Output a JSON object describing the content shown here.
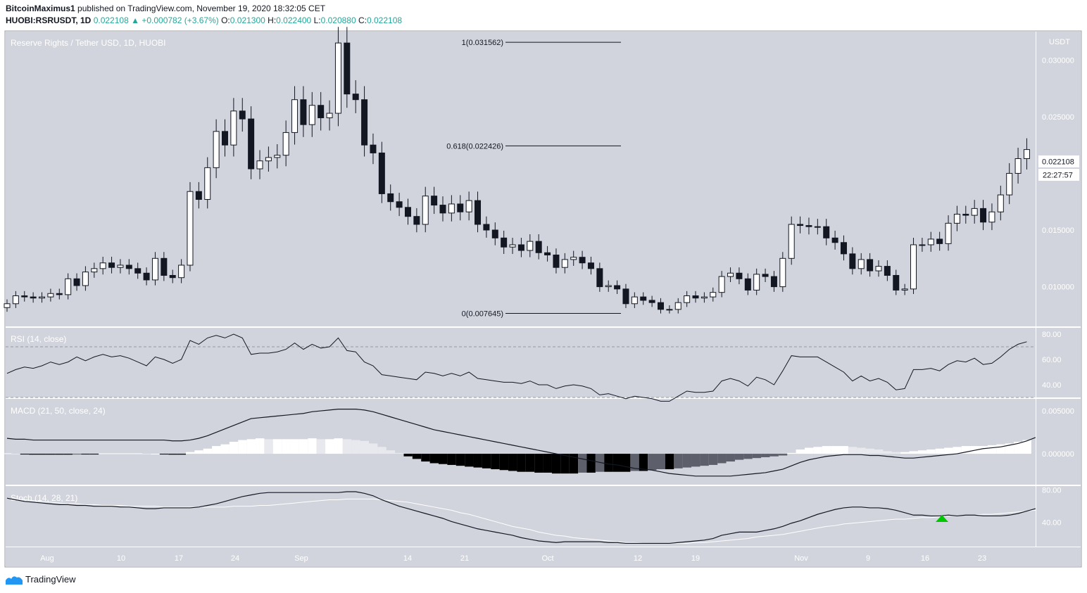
{
  "header": {
    "publisher": "BitcoinMaximus1",
    "published_text": "published on TradingView.com, November 19, 2020 18:32:05 CET",
    "symbol": "HUOBI:RSRUSDT, 1D",
    "price": "0.022108",
    "change": "+0.000782 (+3.67%)",
    "o_label": "O:",
    "o_value": "0.021300",
    "h_label": "H:",
    "h_value": "0.022400",
    "l_label": "L:",
    "l_value": "0.020880",
    "c_label": "C:",
    "c_value": "0.022108"
  },
  "footer": {
    "brand": "TradingView"
  },
  "colors": {
    "panel_bg": "#d1d4dc",
    "line": "#131722",
    "up_candle": "#ffffff",
    "down_candle": "#131722",
    "signal_arrow": "#00c800"
  },
  "chart_data": [
    {
      "type": "candlestick",
      "title": "Reserve Rights / Tether USD, 1D, HUOBI",
      "currency": "USDT",
      "y_ticks": [
        "0.030000",
        "0.025000",
        "0.015000",
        "0.010000"
      ],
      "ylim": [
        0.0065,
        0.0325
      ],
      "x_ticks": [
        "Aug",
        "10",
        "17",
        "24",
        "Sep",
        "14",
        "21",
        "Oct",
        "12",
        "19",
        "Nov",
        "9",
        "16",
        "23"
      ],
      "last_price": "0.022108",
      "countdown": "22:27:57",
      "fib_levels": [
        {
          "label": "1(0.031562)",
          "value": 0.031562
        },
        {
          "label": "0.618(0.022426)",
          "value": 0.022426
        },
        {
          "label": "0(0.007645)",
          "value": 0.007645
        }
      ],
      "close": [
        0.0085,
        0.0092,
        0.0091,
        0.009,
        0.0091,
        0.0094,
        0.0093,
        0.0107,
        0.0101,
        0.0113,
        0.0116,
        0.0121,
        0.0117,
        0.0119,
        0.0116,
        0.0112,
        0.0106,
        0.0125,
        0.011,
        0.0108,
        0.0119,
        0.0184,
        0.0177,
        0.0205,
        0.0237,
        0.0225,
        0.0255,
        0.0248,
        0.0204,
        0.0211,
        0.0214,
        0.0216,
        0.0236,
        0.0265,
        0.0243,
        0.026,
        0.0249,
        0.0253,
        0.0315,
        0.027,
        0.0265,
        0.0225,
        0.0218,
        0.0182,
        0.0175,
        0.017,
        0.0162,
        0.0155,
        0.018,
        0.0172,
        0.0165,
        0.0173,
        0.0166,
        0.0176,
        0.0155,
        0.015,
        0.0143,
        0.0135,
        0.0137,
        0.0132,
        0.014,
        0.013,
        0.0128,
        0.0117,
        0.0124,
        0.0126,
        0.0121,
        0.0116,
        0.01,
        0.0101,
        0.0098,
        0.0085,
        0.0091,
        0.0088,
        0.0086,
        0.008,
        0.008,
        0.0086,
        0.0092,
        0.009,
        0.0091,
        0.0095,
        0.0109,
        0.0112,
        0.0107,
        0.0097,
        0.0111,
        0.0109,
        0.01,
        0.0125,
        0.0155,
        0.0154,
        0.0153,
        0.0153,
        0.0143,
        0.0139,
        0.0129,
        0.0116,
        0.0124,
        0.0114,
        0.0118,
        0.011,
        0.0097,
        0.0098,
        0.0137,
        0.0137,
        0.0142,
        0.0138,
        0.0156,
        0.0164,
        0.0163,
        0.0169,
        0.0157,
        0.0166,
        0.0181,
        0.02,
        0.0213,
        0.0221
      ],
      "rsi": {
        "label": "RSI (14, close)",
        "y_ticks": [
          "80.00",
          "60.00",
          "40.00"
        ],
        "ylim": [
          30,
          85
        ],
        "bands": [
          70,
          30
        ],
        "values": [
          49,
          52,
          54,
          53,
          55,
          58,
          56,
          58,
          62,
          59,
          62,
          64,
          62,
          63,
          61,
          58,
          55,
          62,
          60,
          57,
          60,
          75,
          72,
          77,
          79,
          77,
          80,
          77,
          64,
          65,
          65,
          66,
          68,
          73,
          68,
          72,
          69,
          70,
          77,
          67,
          66,
          58,
          55,
          48,
          47,
          46,
          45,
          44,
          50,
          49,
          47,
          49,
          47,
          50,
          45,
          44,
          43,
          42,
          42,
          41,
          43,
          40,
          40,
          37,
          39,
          40,
          39,
          37,
          32,
          33,
          31,
          29,
          31,
          30,
          29,
          27,
          27,
          31,
          35,
          34,
          34,
          35,
          43,
          45,
          43,
          39,
          46,
          44,
          40,
          51,
          63,
          62,
          62,
          62,
          58,
          54,
          50,
          43,
          47,
          43,
          45,
          42,
          36,
          37,
          52,
          52,
          53,
          51,
          56,
          59,
          58,
          61,
          56,
          57,
          62,
          68,
          72,
          74
        ]
      },
      "macd": {
        "label": "MACD (21, 50, close, 24)",
        "y_ticks": [
          "0.005000",
          "0.000000"
        ],
        "ylim": [
          -0.0036,
          0.0064
        ],
        "histogram": [
          5e-05,
          0.0,
          -5e-05,
          -0.0001,
          -0.0001,
          -0.0001,
          -0.0001,
          -0.0001,
          -5e-05,
          -5e-05,
          -5e-05,
          5e-05,
          5e-05,
          5e-05,
          5e-05,
          5e-05,
          0.0,
          0.0,
          -5e-05,
          -0.0001,
          -0.0001,
          0.0002,
          0.0004,
          0.0006,
          0.0009,
          0.0011,
          0.0014,
          0.0016,
          0.0017,
          0.0018,
          0.0017,
          0.0017,
          0.0017,
          0.0017,
          0.0017,
          0.0018,
          0.0017,
          0.0017,
          0.0018,
          0.0017,
          0.0016,
          0.0015,
          0.0012,
          0.0008,
          0.0004,
          0.0001,
          -0.0003,
          -0.0006,
          -0.0009,
          -0.0011,
          -0.0012,
          -0.0013,
          -0.0014,
          -0.0015,
          -0.0016,
          -0.0017,
          -0.0018,
          -0.0019,
          -0.002,
          -0.0021,
          -0.0021,
          -0.0022,
          -0.0022,
          -0.0023,
          -0.0023,
          -0.0023,
          -0.0022,
          -0.0022,
          -0.0021,
          -0.0021,
          -0.0021,
          -0.0021,
          -0.002,
          -0.002,
          -0.0019,
          -0.0018,
          -0.0018,
          -0.0017,
          -0.0016,
          -0.0015,
          -0.0014,
          -0.0013,
          -0.0011,
          -0.0009,
          -0.0007,
          -0.0006,
          -0.0005,
          -0.0004,
          -0.0003,
          -0.0002,
          0.0001,
          0.0005,
          0.0007,
          0.0008,
          0.0009,
          0.0009,
          0.0009,
          0.0008,
          0.0007,
          0.0006,
          0.0005,
          0.0003,
          0.0002,
          0.0002,
          0.0003,
          0.0004,
          0.0005,
          0.0006,
          0.0007,
          0.0008,
          0.0009,
          0.0009,
          0.0009,
          0.001,
          0.0011,
          0.0012,
          0.0014,
          0.0016
        ],
        "macd_line": [
          0.0018,
          0.0017,
          0.0017,
          0.0016,
          0.0016,
          0.0016,
          0.0016,
          0.0016,
          0.0016,
          0.0016,
          0.0016,
          0.0016,
          0.0016,
          0.0016,
          0.0016,
          0.0016,
          0.0016,
          0.0016,
          0.0016,
          0.0015,
          0.0015,
          0.0016,
          0.0018,
          0.0021,
          0.0025,
          0.0029,
          0.0033,
          0.0037,
          0.0041,
          0.0042,
          0.0043,
          0.0044,
          0.0045,
          0.0046,
          0.0047,
          0.0049,
          0.005,
          0.0051,
          0.0052,
          0.0052,
          0.0052,
          0.0051,
          0.0049,
          0.0046,
          0.0043,
          0.004,
          0.0037,
          0.0034,
          0.0031,
          0.0028,
          0.0026,
          0.0024,
          0.0022,
          0.002,
          0.0018,
          0.0016,
          0.0014,
          0.0012,
          0.001,
          0.0008,
          0.0006,
          0.0004,
          0.0002,
          0.0,
          -0.0002,
          -0.0004,
          -0.0006,
          -0.0008,
          -0.001,
          -0.0012,
          -0.0013,
          -0.0015,
          -0.0017,
          -0.0018,
          -0.0019,
          -0.0021,
          -0.0023,
          -0.0024,
          -0.0025,
          -0.0026,
          -0.0026,
          -0.0026,
          -0.0026,
          -0.0026,
          -0.0025,
          -0.0024,
          -0.0023,
          -0.0022,
          -0.002,
          -0.0018,
          -0.0014,
          -0.001,
          -0.0007,
          -0.0005,
          -0.0003,
          -0.0002,
          -0.0001,
          -0.0001,
          -0.0001,
          -0.0002,
          -0.0002,
          -0.0003,
          -0.0004,
          -0.0005,
          -0.0005,
          -0.0004,
          -0.0003,
          -0.0002,
          -0.0001,
          0.0,
          0.0002,
          0.0004,
          0.0006,
          0.0007,
          0.0008,
          0.001,
          0.0012,
          0.0015,
          0.0019
        ]
      },
      "stoch": {
        "label": "Stoch (14, 28, 21)",
        "y_ticks": [
          "80.00",
          "40.00"
        ],
        "ylim": [
          10,
          85
        ],
        "k": [
          70,
          68,
          66,
          65,
          64,
          63,
          62,
          62,
          61,
          61,
          60,
          60,
          60,
          59,
          59,
          58,
          57,
          57,
          58,
          58,
          58,
          58,
          59,
          61,
          63,
          66,
          69,
          72,
          74,
          76,
          77,
          77,
          77,
          77,
          77,
          77,
          77,
          77,
          77,
          78,
          78,
          76,
          73,
          68,
          64,
          60,
          57,
          54,
          51,
          48,
          45,
          41,
          38,
          35,
          32,
          30,
          28,
          26,
          24,
          21,
          19,
          17,
          16,
          15,
          16,
          16,
          16,
          16,
          16,
          15,
          15,
          14,
          14,
          14,
          14,
          14,
          14,
          15,
          16,
          17,
          18,
          20,
          24,
          26,
          28,
          28,
          28,
          30,
          32,
          35,
          39,
          42,
          46,
          50,
          53,
          56,
          58,
          59,
          59,
          58,
          58,
          57,
          55,
          52,
          49,
          49,
          48,
          48,
          49,
          48,
          49,
          49,
          48,
          48,
          48,
          49,
          51,
          54,
          57
        ],
        "d": [
          70,
          69,
          68,
          67,
          66,
          65,
          64,
          63,
          63,
          62,
          62,
          61,
          61,
          61,
          60,
          60,
          60,
          60,
          59,
          59,
          59,
          59,
          59,
          59,
          59,
          59,
          60,
          60,
          60,
          61,
          61,
          62,
          63,
          64,
          65,
          66,
          67,
          68,
          68,
          69,
          69,
          69,
          69,
          68,
          67,
          66,
          65,
          63,
          61,
          59,
          57,
          55,
          52,
          50,
          47,
          44,
          41,
          38,
          35,
          33,
          31,
          28,
          26,
          24,
          23,
          21,
          20,
          19,
          18,
          17,
          16,
          15,
          15,
          14,
          14,
          14,
          14,
          14,
          14,
          15,
          15,
          16,
          17,
          18,
          19,
          20,
          22,
          23,
          24,
          25,
          27,
          29,
          31,
          33,
          35,
          36,
          38,
          39,
          40,
          41,
          42,
          43,
          44,
          44,
          45,
          46,
          46,
          47,
          48,
          48,
          49,
          49,
          50,
          50,
          51,
          52,
          53,
          54,
          55
        ]
      }
    }
  ]
}
